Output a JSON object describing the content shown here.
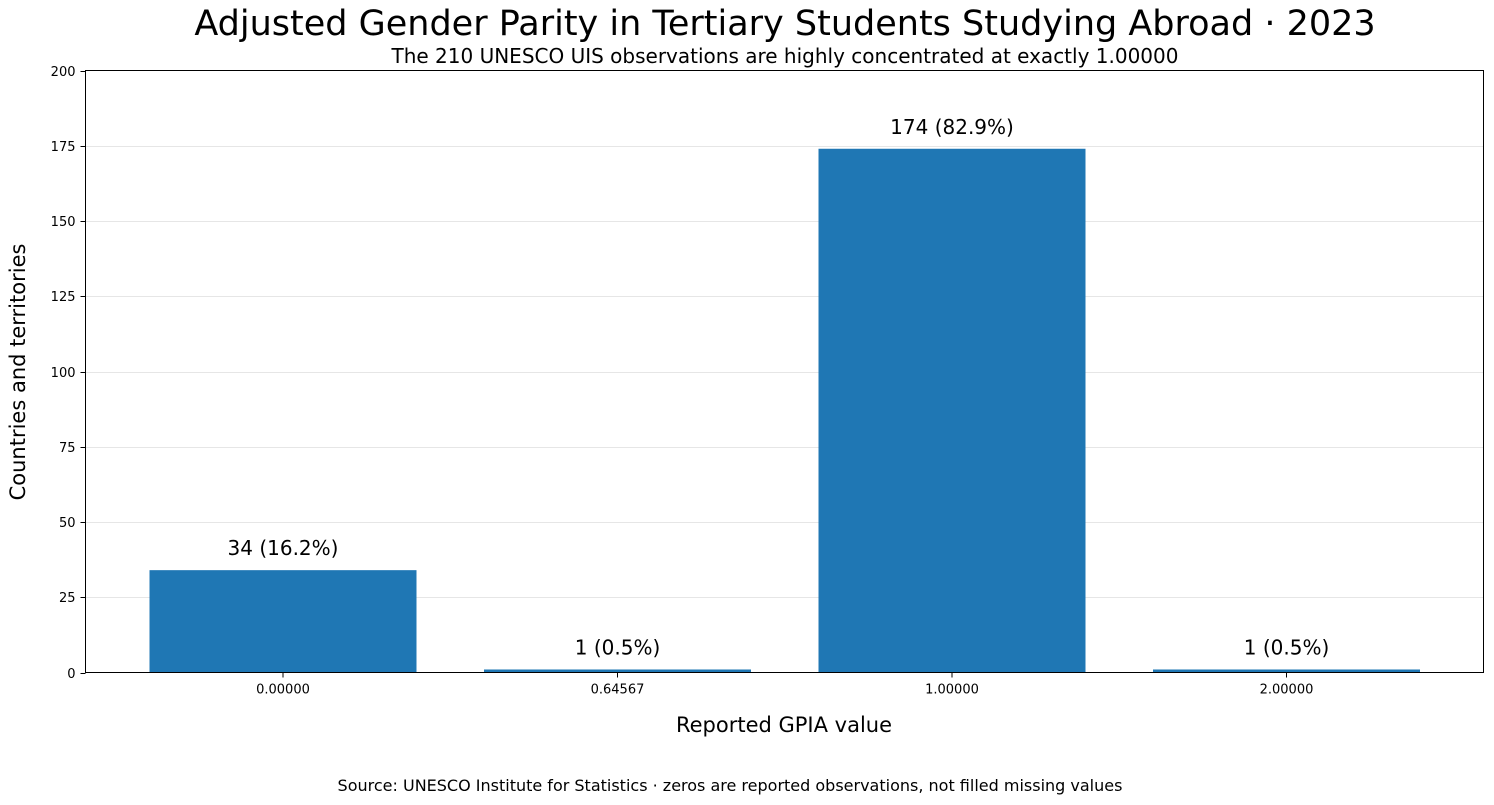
{
  "chart_data": {
    "type": "bar",
    "title": "Adjusted Gender Parity in Tertiary Students Studying Abroad · 2023",
    "subtitle": "The 210 UNESCO UIS observations are highly concentrated at exactly 1.00000",
    "xlabel": "Reported GPIA value",
    "ylabel": "Countries and territories",
    "categories": [
      "0.00000",
      "0.64567",
      "1.00000",
      "2.00000"
    ],
    "values": [
      34,
      1,
      174,
      1
    ],
    "data_labels": [
      "34  (16.2%)",
      "1  (0.5%)",
      "174  (82.9%)",
      "1  (0.5%)"
    ],
    "ylim": [
      0,
      200
    ],
    "yticks": [
      0,
      25,
      50,
      75,
      100,
      125,
      150,
      175,
      200
    ],
    "grid": "horizontal",
    "legend": "none",
    "bar_color": "#1f77b4",
    "source": "Source: UNESCO Institute for Statistics · zeros are reported observations, not filled missing values"
  }
}
